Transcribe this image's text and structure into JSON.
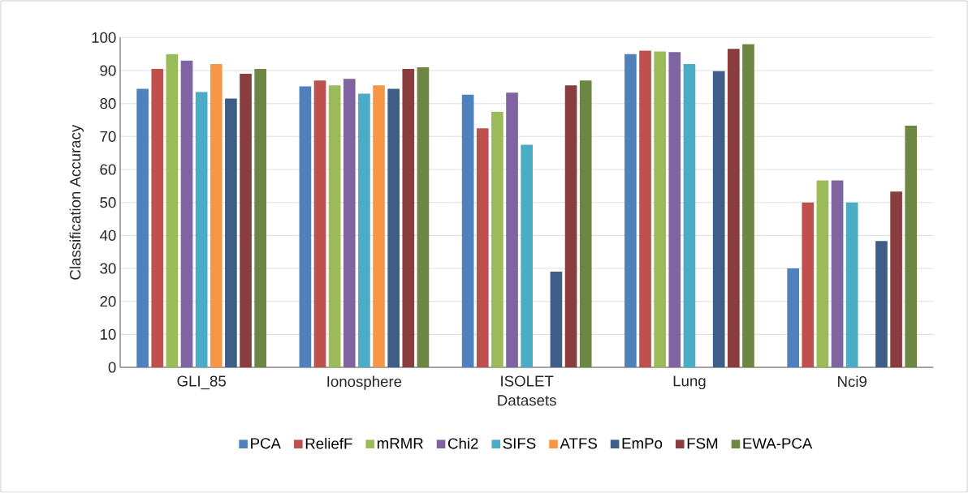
{
  "chart_data": {
    "type": "bar",
    "xlabel": "Datasets",
    "ylabel": "Classification Accuracy",
    "categories": [
      "GLI_85",
      "Ionosphere",
      "ISOLET",
      "Lung",
      "Nci9"
    ],
    "series": [
      {
        "name": "PCA",
        "color": "#4f81bd",
        "values": [
          84.5,
          85.2,
          82.7,
          95,
          30
        ]
      },
      {
        "name": "ReliefF",
        "color": "#c0504d",
        "values": [
          90.5,
          87,
          72.5,
          96,
          50
        ]
      },
      {
        "name": "mRMR",
        "color": "#9bbb59",
        "values": [
          95,
          85.5,
          77.5,
          95.8,
          56.7
        ]
      },
      {
        "name": "Chi2",
        "color": "#8064a2",
        "values": [
          93,
          87.5,
          83.3,
          95.6,
          56.7
        ]
      },
      {
        "name": "SIFS",
        "color": "#4bacc6",
        "values": [
          83.5,
          83,
          67.5,
          92,
          50
        ]
      },
      {
        "name": "ATFS",
        "color": "#f79646",
        "values": [
          92,
          85.5,
          null,
          null,
          null
        ]
      },
      {
        "name": "EmPo",
        "color": "#3e5e87",
        "values": [
          81.5,
          84.5,
          29,
          89.8,
          38.3
        ]
      },
      {
        "name": "FSM",
        "color": "#8a3d3f",
        "values": [
          89,
          90.5,
          85.5,
          96.6,
          53.3
        ]
      },
      {
        "name": "EWA-PCA",
        "color": "#6e8644",
        "values": [
          90.5,
          91,
          87,
          98,
          73.3
        ]
      }
    ],
    "ylim": [
      0,
      100
    ],
    "yticks": [
      0,
      10,
      20,
      30,
      40,
      50,
      60,
      70,
      80,
      90,
      100
    ],
    "grid": "y",
    "legend": "bottom"
  }
}
